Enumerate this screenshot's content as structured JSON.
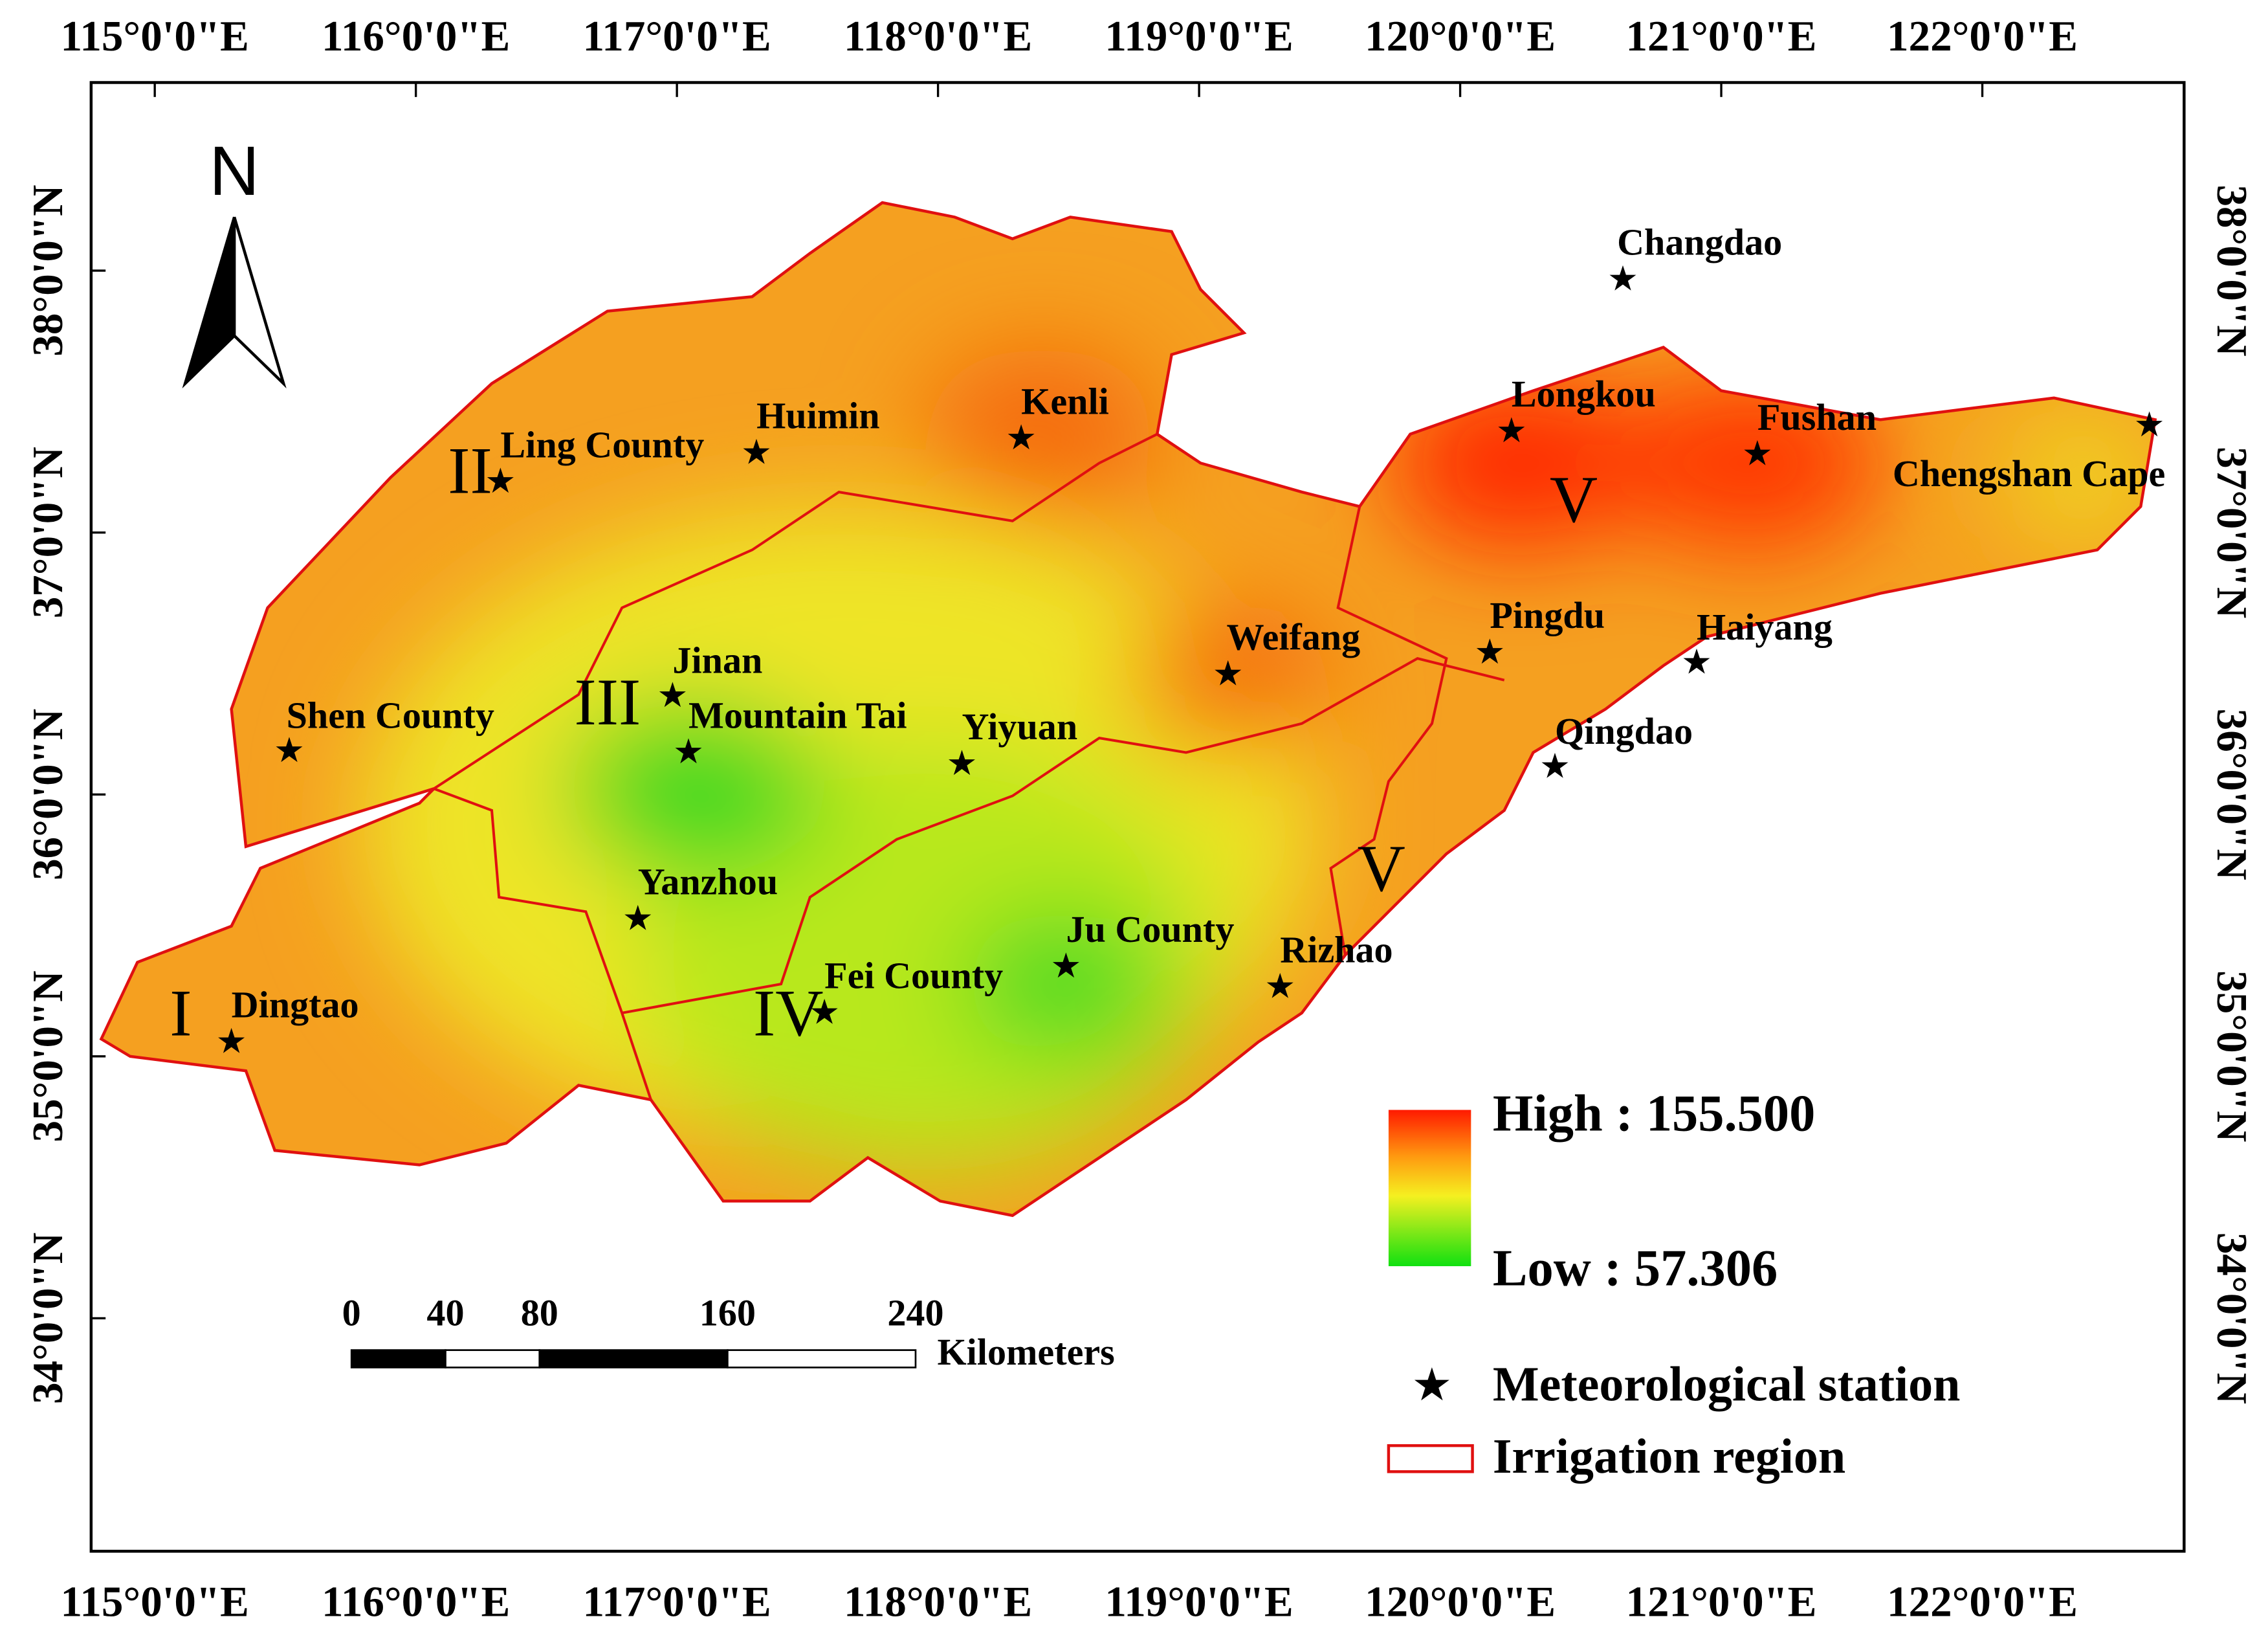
{
  "map": {
    "longitude_labels": [
      "115°0'0\"E",
      "116°0'0\"E",
      "117°0'0\"E",
      "118°0'0\"E",
      "119°0'0\"E",
      "120°0'0\"E",
      "121°0'0\"E",
      "122°0'0\"E"
    ],
    "latitude_labels": [
      "38°0'0\"N",
      "37°0'0\"N",
      "36°0'0\"N",
      "35°0'0\"N",
      "34°0'0\"N"
    ],
    "north": "N",
    "scale_bar": {
      "ticks": [
        0,
        40,
        80,
        160,
        240
      ],
      "unit": "Kilometers"
    },
    "legend": {
      "high": "High : 155.500",
      "low": "Low : 57.306",
      "station": "Meteorological station",
      "region": "Irrigation region"
    },
    "stations": [
      "Changdao",
      "Kenli",
      "Huimin",
      "Ling County",
      "Longkou",
      "Fushan",
      "Chengshan Cape",
      "Weifang",
      "Pingdu",
      "Haiyang",
      "Jinan",
      "Mountain Tai",
      "Shen County",
      "Yiyuan",
      "Qingdao",
      "Yanzhou",
      "Ju County",
      "Rizhao",
      "Fei County",
      "Dingtao"
    ],
    "regions": [
      "I",
      "II",
      "III",
      "IV",
      "V",
      "V"
    ]
  }
}
